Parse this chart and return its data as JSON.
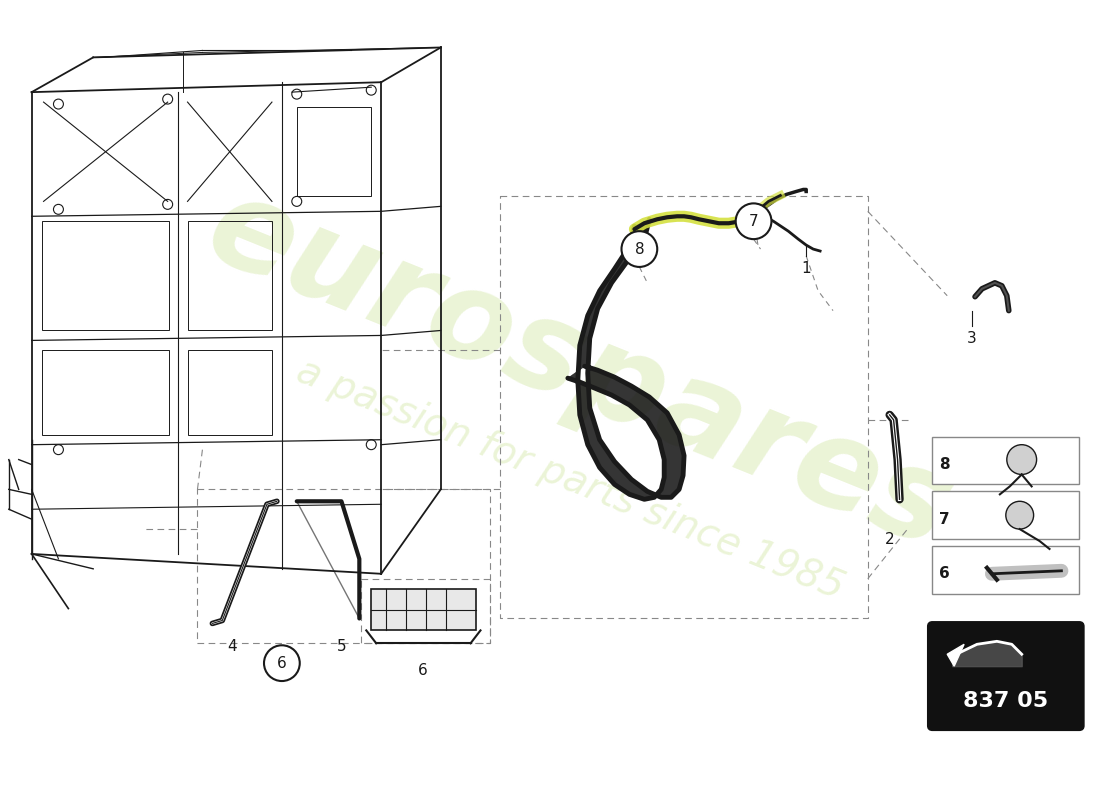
{
  "background_color": "#ffffff",
  "line_color": "#1a1a1a",
  "dashed_color": "#555555",
  "highlight_color": "#d4e040",
  "watermark1": "eurospares",
  "watermark2": "a passion for parts since 1985",
  "part_number": "837 05",
  "figsize": [
    11.0,
    8.0
  ],
  "dpi": 100
}
